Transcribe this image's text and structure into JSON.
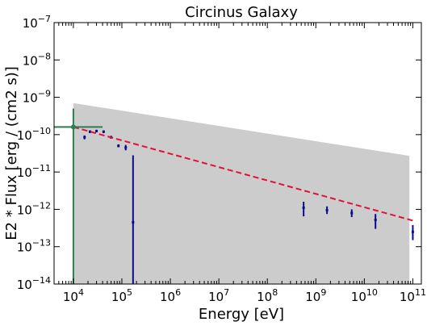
{
  "chart_data": {
    "type": "scatter",
    "title": "Circinus Galaxy",
    "xlabel": "Energy [eV]",
    "ylabel": "E2 * Flux [erg / (cm2 s)]",
    "xscale": "log",
    "yscale": "log",
    "xlim": [
      4000,
      150000000000
    ],
    "ylim": [
      1e-14,
      1e-07
    ],
    "grid": false,
    "x_ticks": [
      {
        "base": "10",
        "exp": "4",
        "value": 10000
      },
      {
        "base": "10",
        "exp": "5",
        "value": 100000
      },
      {
        "base": "10",
        "exp": "6",
        "value": 1000000
      },
      {
        "base": "10",
        "exp": "7",
        "value": 10000000
      },
      {
        "base": "10",
        "exp": "8",
        "value": 100000000
      },
      {
        "base": "10",
        "exp": "9",
        "value": 1000000000
      },
      {
        "base": "10",
        "exp": "10",
        "value": 10000000000
      },
      {
        "base": "10",
        "exp": "11",
        "value": 100000000000
      }
    ],
    "y_ticks": [
      {
        "base": "10",
        "exp": "−14",
        "value": 1e-14
      },
      {
        "base": "10",
        "exp": "−13",
        "value": 1e-13
      },
      {
        "base": "10",
        "exp": "−12",
        "value": 1e-12
      },
      {
        "base": "10",
        "exp": "−11",
        "value": 1e-11
      },
      {
        "base": "10",
        "exp": "−10",
        "value": 1e-10
      },
      {
        "base": "10",
        "exp": "−9",
        "value": 1e-09
      },
      {
        "base": "10",
        "exp": "−8",
        "value": 1e-08
      },
      {
        "base": "10",
        "exp": "−7",
        "value": 1e-07
      }
    ],
    "band": {
      "color": "#cccccc",
      "x": [
        10000,
        85000000000
      ],
      "upper": [
        7e-10,
        2.7e-11
      ],
      "lower": [
        1e-14,
        1e-14
      ]
    },
    "model_line": {
      "color": "#e0103a",
      "style": "dashed",
      "x": [
        10000,
        100000000000
      ],
      "y": [
        1.6e-10,
        5e-13
      ]
    },
    "reference_point": {
      "color": "#2e7d4f",
      "x": 10000,
      "y": 1.6e-10,
      "xerr": [
        4000,
        40000
      ],
      "yerr": [
        1e-14,
        5e-10
      ]
    },
    "points": [
      {
        "x": 17000,
        "y": 8.5e-11,
        "ylo": 7.5e-11,
        "yhi": 9.5e-11
      },
      {
        "x": 22000,
        "y": 1.2e-10,
        "ylo": 1.1e-10,
        "yhi": 1.3e-10
      },
      {
        "x": 30000,
        "y": 1.25e-10,
        "ylo": 1.15e-10,
        "yhi": 1.35e-10
      },
      {
        "x": 42000,
        "y": 1.2e-10,
        "ylo": 1.1e-10,
        "yhi": 1.3e-10
      },
      {
        "x": 60000,
        "y": 8.5e-11,
        "ylo": 7.8e-11,
        "yhi": 9.3e-11
      },
      {
        "x": 85000,
        "y": 5e-11,
        "ylo": 4.6e-11,
        "yhi": 5.5e-11
      },
      {
        "x": 120000,
        "y": 4.5e-11,
        "ylo": 3.8e-11,
        "yhi": 5.3e-11
      },
      {
        "x": 170000,
        "y": 4.5e-13,
        "ylo": 1e-14,
        "yhi": 2.8e-11
      },
      {
        "x": 560000000,
        "y": 1.1e-12,
        "ylo": 6.5e-13,
        "yhi": 1.6e-12
      },
      {
        "x": 1700000000,
        "y": 9.5e-13,
        "ylo": 7.5e-13,
        "yhi": 1.2e-12
      },
      {
        "x": 5500000000,
        "y": 8e-13,
        "ylo": 6.2e-13,
        "yhi": 1e-12
      },
      {
        "x": 17000000000,
        "y": 5.2e-13,
        "ylo": 3e-13,
        "yhi": 7.5e-13
      },
      {
        "x": 100000000000,
        "y": 2.5e-13,
        "ylo": 1.5e-13,
        "yhi": 3.8e-13
      }
    ],
    "point_color": "#0a0a8c"
  }
}
